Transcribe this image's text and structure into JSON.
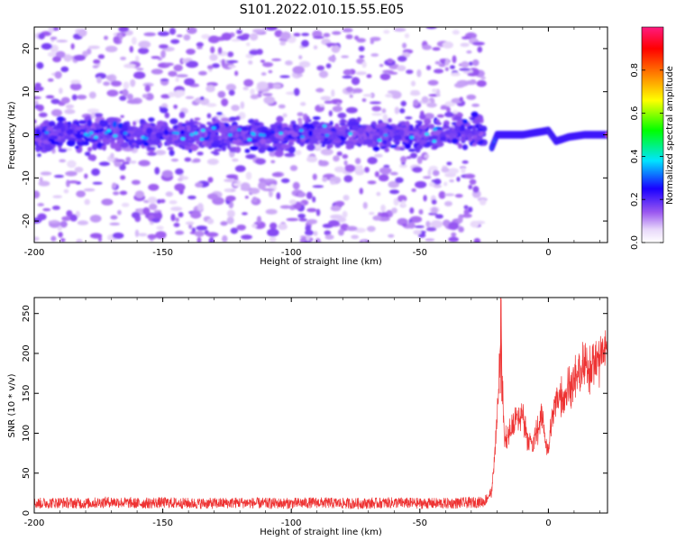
{
  "figure_title": "S101.2022.010.15.55.E05",
  "chart_data": [
    {
      "type": "heatmap",
      "xlabel": "Height of straight line (km)",
      "ylabel": "Frequency (Hz)",
      "xlim": [
        -200,
        23
      ],
      "ylim": [
        -25,
        25
      ],
      "xticks": [
        -200,
        -150,
        -100,
        -50,
        0
      ],
      "yticks": [
        -20,
        -10,
        0,
        10,
        20
      ],
      "colorbar": {
        "label": "Normalized spectral amplitude",
        "range": [
          0,
          1
        ],
        "ticks": [
          "0.0",
          "0.2",
          "0.4",
          "0.6",
          "0.8"
        ],
        "tick_values": [
          0,
          0.2,
          0.4,
          0.6,
          0.8
        ],
        "colors": [
          "#ffffff",
          "#9b59f0",
          "#1a00ff",
          "#00e5ff",
          "#00ff00",
          "#ffff00",
          "#ff8000",
          "#ff0000",
          "#ff1a80"
        ]
      },
      "features": {
        "noise_region_x": [
          -200,
          -25
        ],
        "noise_band_freq": [
          -5,
          5
        ],
        "signal_region_x": [
          -22,
          23
        ],
        "signal_freq": [
          [
            -22,
            -3
          ],
          [
            -20,
            0
          ],
          [
            -15,
            0
          ],
          [
            -10,
            0
          ],
          [
            -5,
            0.5
          ],
          [
            0,
            1
          ],
          [
            3,
            -1.5
          ],
          [
            8,
            -0.5
          ],
          [
            14,
            0
          ],
          [
            23,
            0
          ]
        ]
      }
    },
    {
      "type": "line",
      "xlabel": "Height of straight line (km)",
      "ylabel": "SNR (10 * v/v)",
      "xlim": [
        -200,
        23
      ],
      "ylim": [
        0,
        270
      ],
      "xticks": [
        -200,
        -150,
        -100,
        -50,
        0
      ],
      "yticks": [
        0,
        50,
        100,
        150,
        200,
        250
      ],
      "series": [
        {
          "color": "#ee3333",
          "x": [
            -200,
            -190,
            -180,
            -170,
            -160,
            -150,
            -140,
            -130,
            -120,
            -110,
            -100,
            -90,
            -80,
            -70,
            -60,
            -50,
            -40,
            -30,
            -25,
            -22,
            -21,
            -20,
            -19,
            -18.5,
            -18,
            -17,
            -15,
            -13,
            -11,
            -10,
            -9,
            -8,
            -7,
            -6,
            -5,
            -4,
            -3,
            -2,
            -1,
            0,
            1,
            2,
            3,
            4,
            6,
            8,
            10,
            12,
            14,
            16,
            18,
            20,
            22,
            23
          ],
          "values": [
            10,
            11,
            10,
            12,
            10,
            11,
            10,
            10,
            11,
            10,
            10,
            11,
            10,
            10,
            11,
            10,
            10,
            11,
            12,
            25,
            70,
            120,
            185,
            260,
            160,
            90,
            100,
            115,
            120,
            125,
            110,
            95,
            90,
            80,
            100,
            105,
            120,
            115,
            90,
            75,
            110,
            125,
            140,
            150,
            145,
            160,
            165,
            175,
            180,
            185,
            190,
            195,
            205,
            200
          ]
        }
      ]
    }
  ]
}
